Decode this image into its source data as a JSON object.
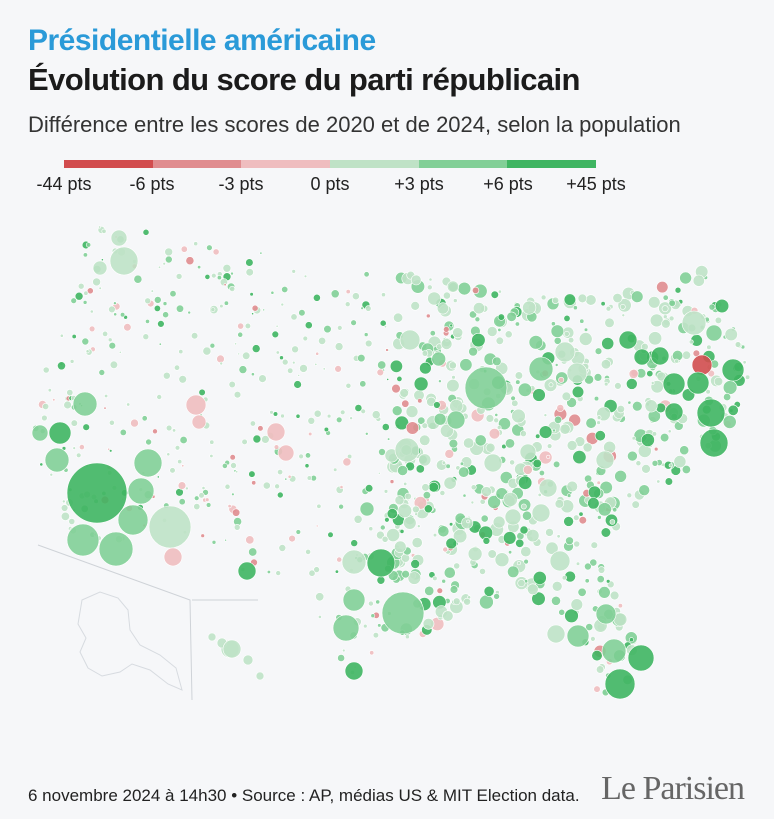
{
  "header": {
    "kicker": "Présidentielle américaine",
    "title": "Évolution du score du parti républicain",
    "subtitle": "Différence entre les scores de 2020 et de 2024, selon la population"
  },
  "legend": {
    "labels": [
      "-44 pts",
      "-6 pts",
      "-3 pts",
      "0 pts",
      "+3 pts",
      "+6 pts",
      "+45 pts"
    ],
    "colors": [
      "#d24c4e",
      "#e08c8f",
      "#efbdbf",
      "#bfe2c6",
      "#82cf97",
      "#3fb562"
    ]
  },
  "footer": {
    "credit": "6 novembre 2024 à 14h30 • Source : AP, médias US & MIT Election data.",
    "logo": "Le Parisien"
  }
}
